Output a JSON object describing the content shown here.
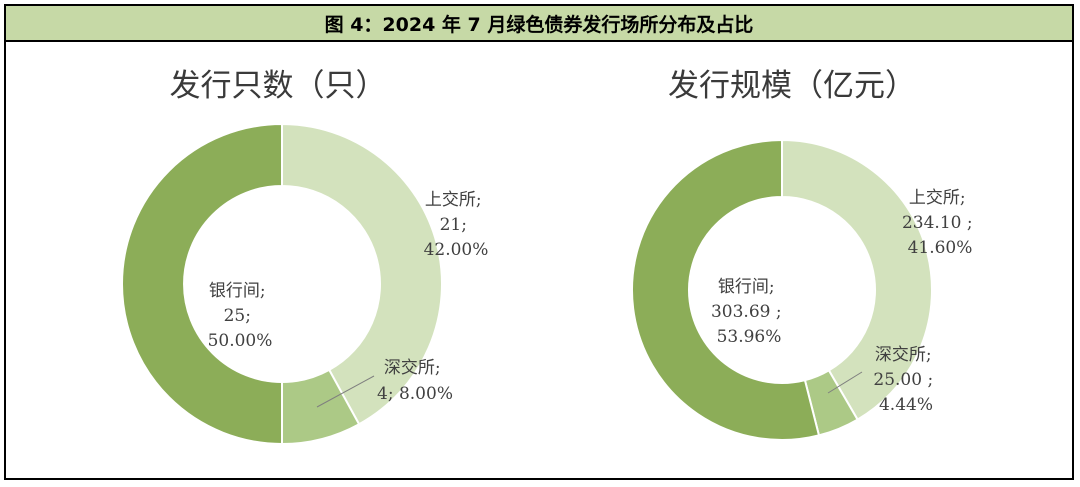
{
  "figure_title": "图 4：2024 年 7 月绿色债券发行场所分布及占比",
  "colors": {
    "banks": "#8cad58",
    "sse": "#d3e2bd",
    "szse": "#acc986",
    "stroke": "#ffffff",
    "leader": "#7f7f7f"
  },
  "chart_data": [
    {
      "type": "pie",
      "title": "发行只数（只）",
      "categories": [
        "上交所",
        "深交所",
        "银行间"
      ],
      "values": [
        21,
        4,
        25
      ],
      "percent": [
        "42.00%",
        "8.00%",
        "50.00%"
      ],
      "labels": [
        [
          "上交所;",
          "21;",
          "42.00%"
        ],
        [
          "深交所;",
          "4; 8.00%"
        ],
        [
          "银行间;",
          "25;",
          "50.00%"
        ]
      ]
    },
    {
      "type": "pie",
      "title": "发行规模（亿元）",
      "categories": [
        "上交所",
        "深交所",
        "银行间"
      ],
      "values": [
        234.1,
        25.0,
        303.69
      ],
      "percent": [
        "41.60%",
        "4.44%",
        "53.96%"
      ],
      "labels": [
        [
          "上交所;",
          "234.10 ;",
          "41.60%"
        ],
        [
          "深交所;",
          "25.00 ;",
          "4.44%"
        ],
        [
          "银行间;",
          "303.69 ;",
          "53.96%"
        ]
      ]
    }
  ]
}
